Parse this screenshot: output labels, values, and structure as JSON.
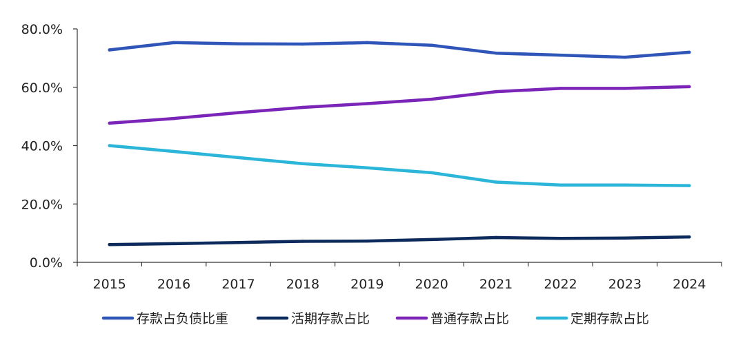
{
  "chart_data": {
    "type": "line",
    "title": "",
    "xlabel": "",
    "ylabel": "",
    "categories": [
      "2015",
      "2016",
      "2017",
      "2018",
      "2019",
      "2020",
      "2021",
      "2022",
      "2023",
      "2024"
    ],
    "ylim": [
      0,
      80
    ],
    "yticks": [
      0,
      20,
      40,
      60,
      80
    ],
    "ytick_labels": [
      "0.0%",
      "20.0%",
      "40.0%",
      "60.0%",
      "80.0%"
    ],
    "grid": false,
    "legend_position": "bottom",
    "series": [
      {
        "name": "存款占负债比重",
        "color": "#2f55b8",
        "values": [
          72.8,
          75.3,
          74.9,
          74.8,
          75.3,
          74.4,
          71.7,
          71.0,
          70.3,
          72.0
        ]
      },
      {
        "name": "活期存款占比",
        "color": "#0c2a5c",
        "values": [
          6.1,
          6.4,
          6.8,
          7.2,
          7.3,
          7.8,
          8.5,
          8.2,
          8.3,
          8.7
        ]
      },
      {
        "name": "普通存款占比",
        "color": "#7a24b8",
        "values": [
          47.7,
          49.3,
          51.3,
          53.1,
          54.4,
          55.9,
          58.5,
          59.6,
          59.6,
          60.2
        ]
      },
      {
        "name": "定期存款占比",
        "color": "#2bb5d8",
        "values": [
          40.0,
          38.0,
          35.9,
          33.8,
          32.4,
          30.7,
          27.5,
          26.5,
          26.5,
          26.3
        ]
      }
    ]
  }
}
